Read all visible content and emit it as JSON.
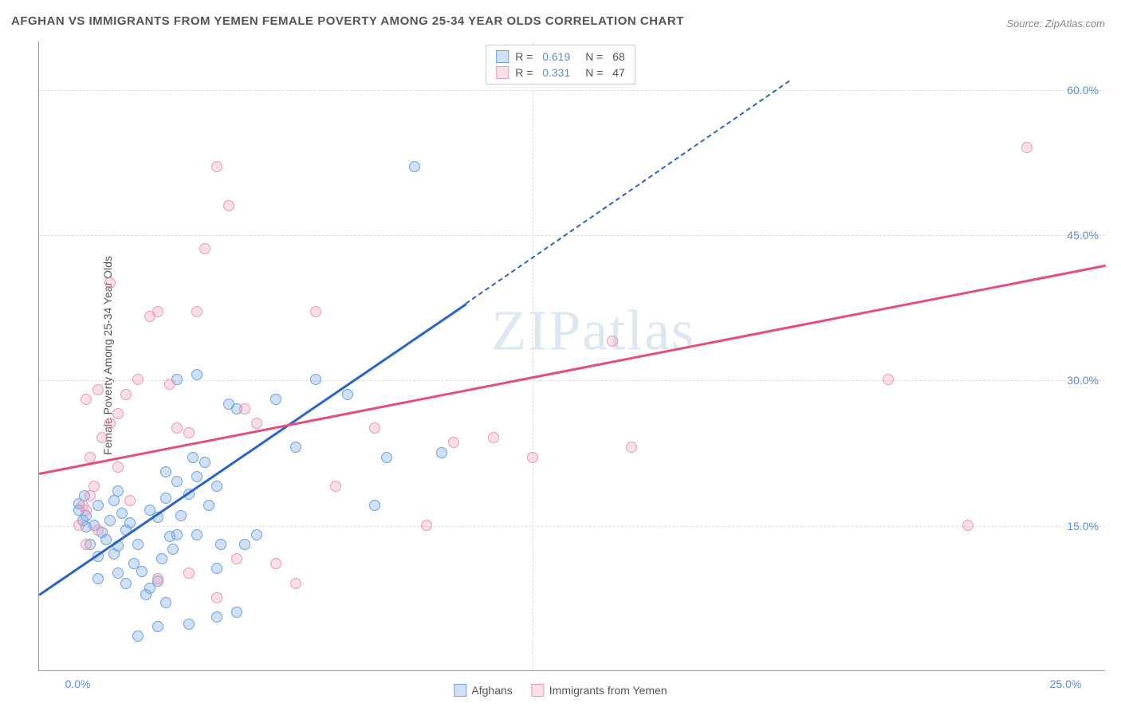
{
  "title": "AFGHAN VS IMMIGRANTS FROM YEMEN FEMALE POVERTY AMONG 25-34 YEAR OLDS CORRELATION CHART",
  "source": "Source: ZipAtlas.com",
  "y_axis_label": "Female Poverty Among 25-34 Year Olds",
  "watermark": "ZIPatlas",
  "chart": {
    "type": "scatter",
    "background_color": "#ffffff",
    "grid_color": "#dddddd",
    "axis_color": "#999999",
    "text_color": "#555555",
    "tick_label_color": "#5b8dd6",
    "title_fontsize": 15,
    "label_fontsize": 14,
    "tick_fontsize": 14,
    "xlim": [
      -1,
      26
    ],
    "ylim": [
      0,
      65
    ],
    "x_ticks": [
      {
        "v": 0,
        "label": "0.0%"
      },
      {
        "v": 25,
        "label": "25.0%"
      }
    ],
    "x_grid_at": [
      11.5
    ],
    "y_ticks": [
      {
        "v": 15,
        "label": "15.0%"
      },
      {
        "v": 30,
        "label": "30.0%"
      },
      {
        "v": 45,
        "label": "45.0%"
      },
      {
        "v": 60,
        "label": "60.0%"
      }
    ],
    "marker_radius": 7,
    "marker_border_width": 1.2
  },
  "series": [
    {
      "name": "Afghans",
      "fill_color": "rgba(120,170,230,0.35)",
      "stroke_color": "#6da3e0",
      "trend_color": "#2a64c9",
      "trend": {
        "x1": -1,
        "y1": 8.0,
        "x2": 9.8,
        "y2": 38.0,
        "dash_to_x": 18.0,
        "dash_to_y": 61.0
      },
      "legend_R": "0.619",
      "legend_N": "68",
      "points": [
        {
          "x": 0.0,
          "y": 16.5
        },
        {
          "x": 0.2,
          "y": 14.8
        },
        {
          "x": 0.1,
          "y": 15.5
        },
        {
          "x": 0.0,
          "y": 17.2
        },
        {
          "x": 0.15,
          "y": 18.0
        },
        {
          "x": 0.2,
          "y": 16.0
        },
        {
          "x": 0.4,
          "y": 15.0
        },
        {
          "x": 0.5,
          "y": 17.0
        },
        {
          "x": 0.6,
          "y": 14.2
        },
        {
          "x": 0.3,
          "y": 13.0
        },
        {
          "x": 0.7,
          "y": 13.5
        },
        {
          "x": 0.5,
          "y": 11.8
        },
        {
          "x": 0.9,
          "y": 12.0
        },
        {
          "x": 1.0,
          "y": 12.8
        },
        {
          "x": 0.8,
          "y": 15.5
        },
        {
          "x": 1.1,
          "y": 16.2
        },
        {
          "x": 0.9,
          "y": 17.5
        },
        {
          "x": 1.2,
          "y": 14.5
        },
        {
          "x": 1.3,
          "y": 15.2
        },
        {
          "x": 1.0,
          "y": 18.5
        },
        {
          "x": 1.5,
          "y": 13.0
        },
        {
          "x": 1.4,
          "y": 11.0
        },
        {
          "x": 1.6,
          "y": 10.2
        },
        {
          "x": 1.2,
          "y": 9.0
        },
        {
          "x": 1.8,
          "y": 8.5
        },
        {
          "x": 2.0,
          "y": 9.2
        },
        {
          "x": 1.7,
          "y": 7.8
        },
        {
          "x": 2.2,
          "y": 7.0
        },
        {
          "x": 2.1,
          "y": 11.5
        },
        {
          "x": 2.3,
          "y": 13.8
        },
        {
          "x": 2.4,
          "y": 12.5
        },
        {
          "x": 2.5,
          "y": 14.0
        },
        {
          "x": 2.0,
          "y": 15.8
        },
        {
          "x": 2.6,
          "y": 16.0
        },
        {
          "x": 2.2,
          "y": 17.8
        },
        {
          "x": 2.8,
          "y": 18.2
        },
        {
          "x": 2.5,
          "y": 19.5
        },
        {
          "x": 3.0,
          "y": 20.0
        },
        {
          "x": 3.2,
          "y": 21.5
        },
        {
          "x": 2.9,
          "y": 22.0
        },
        {
          "x": 3.5,
          "y": 19.0
        },
        {
          "x": 3.3,
          "y": 17.0
        },
        {
          "x": 3.0,
          "y": 14.0
        },
        {
          "x": 3.6,
          "y": 13.0
        },
        {
          "x": 3.8,
          "y": 27.5
        },
        {
          "x": 4.0,
          "y": 27.0
        },
        {
          "x": 3.5,
          "y": 10.5
        },
        {
          "x": 4.2,
          "y": 13.0
        },
        {
          "x": 4.5,
          "y": 14.0
        },
        {
          "x": 2.0,
          "y": 4.5
        },
        {
          "x": 2.8,
          "y": 4.8
        },
        {
          "x": 1.5,
          "y": 3.5
        },
        {
          "x": 3.5,
          "y": 5.5
        },
        {
          "x": 4.0,
          "y": 6.0
        },
        {
          "x": 2.5,
          "y": 30.0
        },
        {
          "x": 3.0,
          "y": 30.5
        },
        {
          "x": 5.0,
          "y": 28.0
        },
        {
          "x": 5.5,
          "y": 23.0
        },
        {
          "x": 6.0,
          "y": 30.0
        },
        {
          "x": 6.8,
          "y": 28.5
        },
        {
          "x": 7.5,
          "y": 17.0
        },
        {
          "x": 7.8,
          "y": 22.0
        },
        {
          "x": 8.5,
          "y": 52.0
        },
        {
          "x": 9.2,
          "y": 22.5
        },
        {
          "x": 1.0,
          "y": 10.0
        },
        {
          "x": 0.5,
          "y": 9.5
        },
        {
          "x": 1.8,
          "y": 16.5
        },
        {
          "x": 2.2,
          "y": 20.5
        }
      ]
    },
    {
      "name": "Immigrants from Yemen",
      "fill_color": "rgba(240,150,180,0.30)",
      "stroke_color": "#e79ab5",
      "trend_color": "#e54d7b",
      "trend": {
        "x1": -1,
        "y1": 20.5,
        "x2": 26,
        "y2": 42.0
      },
      "legend_R": "0.331",
      "legend_N": "47",
      "points": [
        {
          "x": 0.0,
          "y": 15.0
        },
        {
          "x": 0.2,
          "y": 16.5
        },
        {
          "x": 0.3,
          "y": 18.0
        },
        {
          "x": 0.1,
          "y": 17.0
        },
        {
          "x": 0.4,
          "y": 19.0
        },
        {
          "x": 0.5,
          "y": 14.5
        },
        {
          "x": 0.3,
          "y": 22.0
        },
        {
          "x": 0.6,
          "y": 24.0
        },
        {
          "x": 0.8,
          "y": 25.5
        },
        {
          "x": 0.2,
          "y": 28.0
        },
        {
          "x": 0.5,
          "y": 29.0
        },
        {
          "x": 1.0,
          "y": 26.5
        },
        {
          "x": 1.2,
          "y": 28.5
        },
        {
          "x": 1.5,
          "y": 30.0
        },
        {
          "x": 0.8,
          "y": 40.0
        },
        {
          "x": 1.8,
          "y": 36.5
        },
        {
          "x": 2.0,
          "y": 37.0
        },
        {
          "x": 2.3,
          "y": 29.5
        },
        {
          "x": 2.5,
          "y": 25.0
        },
        {
          "x": 2.8,
          "y": 24.5
        },
        {
          "x": 3.0,
          "y": 37.0
        },
        {
          "x": 3.5,
          "y": 52.0
        },
        {
          "x": 3.8,
          "y": 48.0
        },
        {
          "x": 3.2,
          "y": 43.5
        },
        {
          "x": 4.2,
          "y": 27.0
        },
        {
          "x": 4.5,
          "y": 25.5
        },
        {
          "x": 5.0,
          "y": 11.0
        },
        {
          "x": 5.5,
          "y": 9.0
        },
        {
          "x": 6.0,
          "y": 37.0
        },
        {
          "x": 6.5,
          "y": 19.0
        },
        {
          "x": 2.0,
          "y": 9.5
        },
        {
          "x": 2.8,
          "y": 10.0
        },
        {
          "x": 3.5,
          "y": 7.5
        },
        {
          "x": 4.0,
          "y": 11.5
        },
        {
          "x": 7.5,
          "y": 25.0
        },
        {
          "x": 8.8,
          "y": 15.0
        },
        {
          "x": 9.5,
          "y": 23.5
        },
        {
          "x": 10.5,
          "y": 24.0
        },
        {
          "x": 11.5,
          "y": 22.0
        },
        {
          "x": 13.5,
          "y": 34.0
        },
        {
          "x": 14.0,
          "y": 23.0
        },
        {
          "x": 20.5,
          "y": 30.0
        },
        {
          "x": 22.5,
          "y": 15.0
        },
        {
          "x": 24.0,
          "y": 54.0
        },
        {
          "x": 1.3,
          "y": 17.5
        },
        {
          "x": 1.0,
          "y": 21.0
        },
        {
          "x": 0.2,
          "y": 13.0
        }
      ]
    }
  ],
  "legend_labels": {
    "R_prefix": "R =",
    "N_prefix": "N ="
  }
}
